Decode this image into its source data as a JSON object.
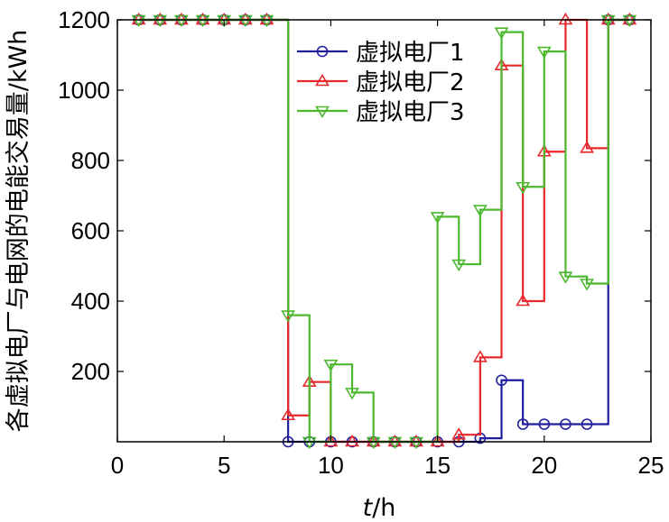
{
  "chart_data": {
    "type": "line",
    "step": "post",
    "xlabel": "t/h",
    "xlabel_italic": "t",
    "xlabel_rest": "/h",
    "ylabel": "各虚拟电厂与电网的电能交易量/kWh",
    "xlim": [
      0,
      25
    ],
    "ylim": [
      0,
      1200
    ],
    "xticks": [
      0,
      5,
      10,
      15,
      20,
      25
    ],
    "yticks": [
      200,
      400,
      600,
      800,
      1000,
      1200
    ],
    "grid": false,
    "legend_position": "top-right",
    "x": [
      1,
      2,
      3,
      4,
      5,
      6,
      7,
      8,
      9,
      10,
      11,
      12,
      13,
      14,
      15,
      16,
      17,
      18,
      19,
      20,
      21,
      22,
      23,
      24
    ],
    "series": [
      {
        "name": "虚拟电厂1",
        "color": "#1f1f9e",
        "marker": "circle",
        "values": [
          1200,
          1200,
          1200,
          1200,
          1200,
          1200,
          1200,
          0,
          0,
          0,
          0,
          0,
          0,
          0,
          0,
          0,
          10,
          175,
          50,
          50,
          50,
          50,
          1200,
          1200
        ]
      },
      {
        "name": "虚拟电厂2",
        "color": "#e8282a",
        "marker": "triangle-up",
        "values": [
          1200,
          1200,
          1200,
          1200,
          1200,
          1200,
          1200,
          75,
          170,
          0,
          0,
          0,
          0,
          0,
          0,
          20,
          240,
          1070,
          400,
          825,
          1200,
          835,
          1200,
          1200
        ]
      },
      {
        "name": "虚拟电厂3",
        "color": "#4cb82e",
        "marker": "triangle-down",
        "values": [
          1200,
          1200,
          1200,
          1200,
          1200,
          1200,
          1200,
          360,
          0,
          220,
          140,
          0,
          0,
          0,
          640,
          505,
          660,
          1165,
          725,
          1110,
          470,
          450,
          1200,
          1200
        ]
      }
    ]
  }
}
